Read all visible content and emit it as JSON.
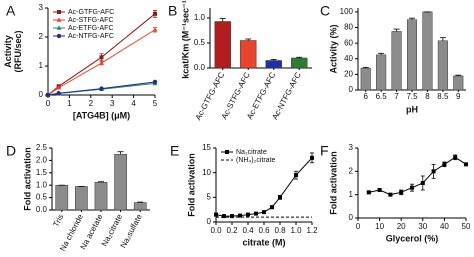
{
  "chart_data": [
    {
      "type": "line",
      "panel_label": "A",
      "ylabel": "Activity\n(RFU/sec)",
      "xlabel": "[ATG4B] (μM)",
      "xlim": [
        0,
        5
      ],
      "xticks": [
        0,
        1,
        2,
        3,
        4,
        5
      ],
      "ylim": [
        0,
        3
      ],
      "yticks": [
        0,
        1,
        2,
        3
      ],
      "x": [
        0,
        0.5,
        2.5,
        5
      ],
      "series": [
        {
          "name": "Ac-GTFG-AFC",
          "color": "#8b1a1a",
          "marker": "square",
          "values": [
            0,
            0.3,
            1.3,
            2.8
          ],
          "errors": [
            0,
            0.03,
            0.12,
            0.12
          ]
        },
        {
          "name": "Ac-STFG-AFC",
          "color": "#e8452c",
          "marker": "triangle",
          "values": [
            0,
            0.25,
            1.1,
            2.25
          ],
          "errors": [
            0,
            0.02,
            0.06,
            0.08
          ]
        },
        {
          "name": "Ac-ETFG-AFC",
          "color": "#2e8b57",
          "marker": "triangle",
          "values": [
            0,
            0.05,
            0.2,
            0.4
          ],
          "errors": [
            0,
            0.01,
            0.02,
            0.03
          ]
        },
        {
          "name": "Ac-NTFG-AFC",
          "color": "#1f2f8f",
          "marker": "circle",
          "values": [
            0,
            0.06,
            0.22,
            0.45
          ],
          "errors": [
            0,
            0.01,
            0.02,
            0.03
          ]
        }
      ],
      "legend": "upper left"
    },
    {
      "type": "bar",
      "panel_label": "B",
      "ylabel": "kcat/Km (M⁻¹sec⁻¹)",
      "categories": [
        "Ac-GTFG-AFC",
        "Ac-STFG-AFC",
        "Ac-ETFG-AFC",
        "Ac-NTFG-AFC"
      ],
      "values": [
        0.93,
        0.55,
        0.15,
        0.2
      ],
      "errors": [
        0.06,
        0.03,
        0.02,
        0.015
      ],
      "colors": [
        "#b01e1e",
        "#e8452c",
        "#1f2fa8",
        "#2e7d32"
      ],
      "ylim": [
        0,
        1.2
      ],
      "yticks": [
        {
          "value": 0,
          "label": "0.0"
        },
        {
          "value": 0.5,
          "label": "0.5"
        },
        {
          "value": 1,
          "label": "1.0"
        }
      ]
    },
    {
      "type": "bar",
      "panel_label": "C",
      "ylabel": "Activity (%)",
      "xlabel": "pH",
      "categories": [
        "6",
        "6.5",
        "7",
        "7.5",
        "8",
        "8.5",
        "9"
      ],
      "values": [
        28,
        45,
        75,
        90,
        100,
        63,
        18
      ],
      "errors": [
        1,
        2,
        3,
        2,
        0,
        4,
        1
      ],
      "color": "#8c8c8c",
      "ylim": [
        0,
        105
      ],
      "yticks": [
        0,
        20,
        40,
        60,
        80,
        100
      ]
    },
    {
      "type": "bar",
      "panel_label": "D",
      "ylabel": "Fold activation",
      "categories": [
        "Tris",
        "Na chloride",
        "Na acetate",
        "Na₂citrate",
        "Na₂sulfate"
      ],
      "values": [
        1.0,
        0.95,
        1.12,
        2.25,
        0.3
      ],
      "errors": [
        0,
        0,
        0.02,
        0.1,
        0.02
      ],
      "color": "#8c8c8c",
      "ylim": [
        0,
        2.5
      ],
      "yticks": [
        {
          "value": 0,
          "label": "0.0"
        },
        {
          "value": 0.5,
          "label": "0.5"
        },
        {
          "value": 1,
          "label": "1.0"
        },
        {
          "value": 1.5,
          "label": "1.5"
        },
        {
          "value": 2,
          "label": "2.0"
        },
        {
          "value": 2.5,
          "label": "2.5"
        }
      ]
    },
    {
      "type": "line",
      "panel_label": "E",
      "ylabel": "Fold activation",
      "xlabel": "citrate (M)",
      "xlim": [
        0,
        1.2
      ],
      "xticks": [
        {
          "value": 0,
          "label": "0.0"
        },
        {
          "value": 0.2,
          "label": "0.2"
        },
        {
          "value": 0.4,
          "label": "0.4"
        },
        {
          "value": 0.6,
          "label": "0.6"
        },
        {
          "value": 0.8,
          "label": "0.8"
        },
        {
          "value": 1,
          "label": "1.0"
        },
        {
          "value": 1.2,
          "label": "1.2"
        }
      ],
      "ylim": [
        0,
        15
      ],
      "yticks": [
        0,
        5,
        10,
        15
      ],
      "x": [
        0,
        0.1,
        0.2,
        0.3,
        0.4,
        0.5,
        0.6,
        0.7,
        0.8,
        1.0,
        1.2
      ],
      "series": [
        {
          "name": "Na₂citrate",
          "color": "#000000",
          "marker": "square",
          "dash": false,
          "values": [
            1.5,
            1.2,
            1.2,
            1.3,
            1.5,
            1.7,
            2,
            3,
            5,
            9.5,
            13
          ],
          "errors": [
            0,
            0,
            0,
            0,
            0,
            0,
            0,
            0.3,
            0.4,
            0.8,
            1
          ]
        },
        {
          "name": "(NH₄)₂citrate",
          "color": "#000000",
          "marker": "none",
          "dash": true,
          "values": [
            1,
            1,
            1,
            1,
            1,
            1,
            1,
            1,
            1,
            1,
            1
          ],
          "errors": [
            0,
            0,
            0,
            0,
            0,
            0,
            0,
            0,
            0,
            0,
            0
          ]
        }
      ],
      "legend": "upper left"
    },
    {
      "type": "line",
      "panel_label": "F",
      "ylabel": "Fold activation",
      "xlabel": "Glycerol (%)",
      "xlim": [
        0,
        50
      ],
      "xticks": [
        0,
        10,
        20,
        30,
        40,
        50
      ],
      "ylim": [
        0,
        3
      ],
      "yticks": [
        0,
        1,
        2,
        3
      ],
      "x": [
        5,
        10,
        15,
        20,
        25,
        30,
        35,
        40,
        45,
        50
      ],
      "series": [
        {
          "name": "Glycerol",
          "color": "#000000",
          "marker": "square",
          "dash": false,
          "values": [
            1.1,
            1.2,
            1.0,
            1.1,
            1.3,
            1.5,
            2.0,
            2.3,
            2.6,
            2.3
          ],
          "errors": [
            0.05,
            0.05,
            0.05,
            0.1,
            0.15,
            0.3,
            0.3,
            0.1,
            0.1,
            0.05
          ]
        }
      ]
    }
  ]
}
